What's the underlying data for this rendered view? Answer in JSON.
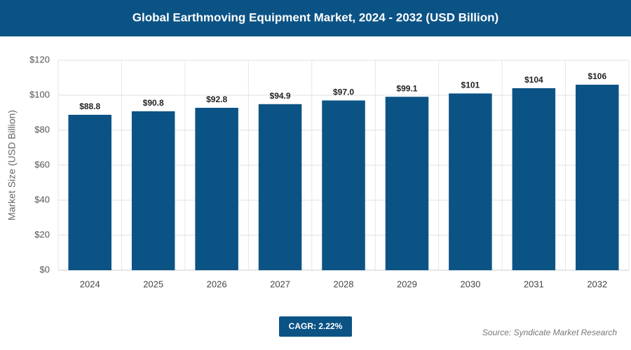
{
  "chart_data": {
    "type": "bar",
    "title": "Global Earthmoving Equipment Market, 2024 - 2032 (USD Billion)",
    "y_label": "Market Size (USD Billion)",
    "categories": [
      "2024",
      "2025",
      "2026",
      "2027",
      "2028",
      "2029",
      "2030",
      "2031",
      "2032"
    ],
    "values": [
      88.8,
      90.8,
      92.8,
      94.9,
      97.0,
      99.1,
      101,
      104,
      106
    ],
    "value_labels": [
      "$88.8",
      "$90.8",
      "$92.8",
      "$94.9",
      "$97.0",
      "$99.1",
      "$101",
      "$104",
      "$106"
    ],
    "color": "#0b5385",
    "ylim": [
      0,
      120
    ],
    "yticks": [
      {
        "value": 0,
        "label": "$0"
      },
      {
        "value": 20,
        "label": "$20"
      },
      {
        "value": 40,
        "label": "$40"
      },
      {
        "value": 60,
        "label": "$60"
      },
      {
        "value": 80,
        "label": "$80"
      },
      {
        "value": 100,
        "label": "$100"
      },
      {
        "value": 120,
        "label": "$120"
      }
    ],
    "grid": true,
    "cagr": "CAGR: 2.22%",
    "source": "Source: Syndicate Market Research"
  }
}
